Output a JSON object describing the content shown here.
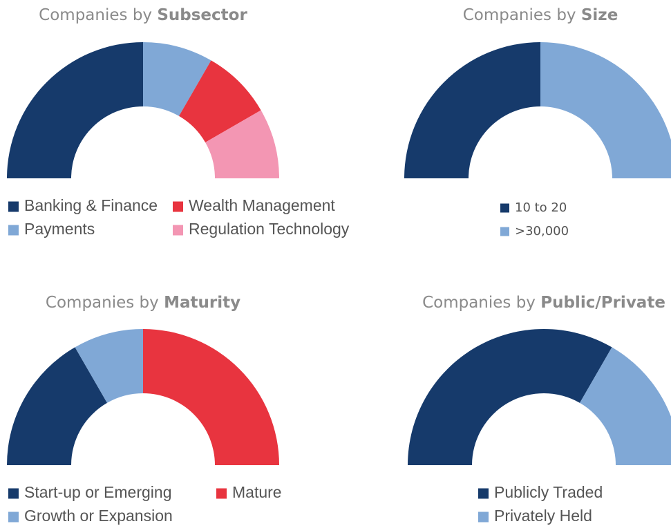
{
  "chart_data": [
    {
      "type": "half-donut",
      "title_lead": "Companies by",
      "title_emphasis": "Subsector",
      "categories": [
        "Banking & Finance",
        "Payments",
        "Wealth Management",
        "Regulation Technology"
      ],
      "values": [
        3,
        1,
        1,
        1
      ],
      "colors": [
        "#163a6b",
        "#80a8d6",
        "#e8343f",
        "#f396b3"
      ],
      "legend_rows": 2
    },
    {
      "type": "half-donut",
      "title_lead": "Companies by",
      "title_emphasis": "Size",
      "categories": [
        "10 to 20",
        ">30,000"
      ],
      "values": [
        1,
        1
      ],
      "colors": [
        "#163a6b",
        "#80a8d6"
      ],
      "legend_rows": 2
    },
    {
      "type": "half-donut",
      "title_lead": "Companies by",
      "title_emphasis": "Maturity",
      "categories": [
        "Start-up or Emerging",
        "Growth or Expansion",
        "Mature"
      ],
      "values": [
        2,
        1,
        3
      ],
      "colors": [
        "#163a6b",
        "#80a8d6",
        "#e8343f"
      ],
      "legend_rows": 2
    },
    {
      "type": "half-donut",
      "title_lead": "Companies by",
      "title_emphasis": "Public/Private",
      "categories": [
        "Publicly Traded",
        "Privately Held"
      ],
      "values": [
        2,
        1
      ],
      "colors": [
        "#163a6b",
        "#80a8d6"
      ],
      "legend_rows": 2
    }
  ]
}
